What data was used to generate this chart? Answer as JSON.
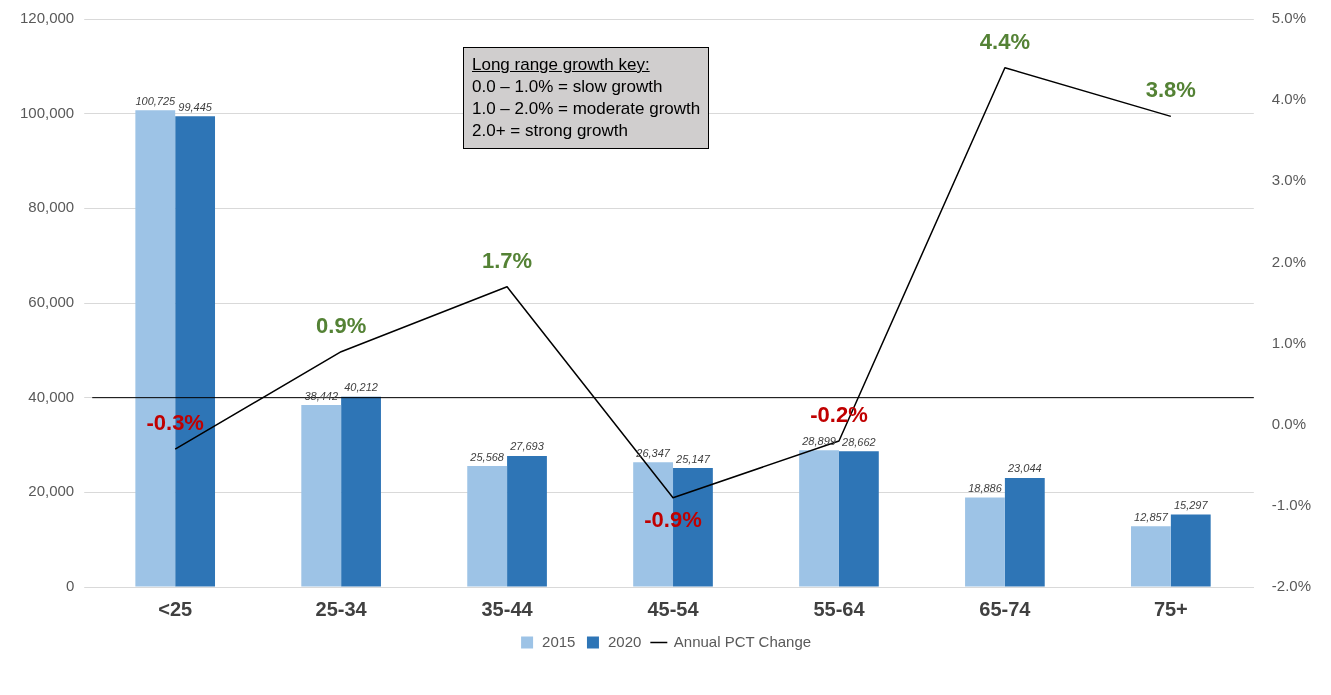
{
  "chart_data": {
    "type": "bar",
    "categories": [
      "<25",
      "25-34",
      "35-44",
      "45-54",
      "55-64",
      "65-74",
      "75+"
    ],
    "series": [
      {
        "name": "2015",
        "color": "#9dc3e6",
        "values": [
          100725,
          38442,
          25568,
          26347,
          28899,
          18886,
          12857
        ],
        "value_labels": [
          "100,725",
          "38,442",
          "25,568",
          "26,347",
          "28,899",
          "18,886",
          "12,857"
        ]
      },
      {
        "name": "2020",
        "color": "#2e75b6",
        "values": [
          99445,
          40212,
          27693,
          25147,
          28662,
          23044,
          15297
        ],
        "value_labels": [
          "99,445",
          "40,212",
          "27,693",
          "25,147",
          "28,662",
          "23,044",
          "15,297"
        ]
      },
      {
        "name": "Annual PCT Change",
        "type": "line",
        "axis": "y2",
        "color": "#000000",
        "values": [
          -0.3,
          0.9,
          1.7,
          -0.9,
          -0.2,
          4.4,
          3.8
        ],
        "value_labels": [
          "-0.3%",
          "0.9%",
          "1.7%",
          "-0.9%",
          "-0.2%",
          "4.4%",
          "3.8%"
        ]
      }
    ],
    "ylim": [
      0,
      120000
    ],
    "yticks": [
      0,
      {
        "value": 20000,
        "label": "20,000"
      },
      {
        "value": 40000,
        "label": "40,000"
      },
      {
        "value": 60000,
        "label": "60,000"
      },
      {
        "value": 80000,
        "label": "80,000"
      },
      {
        "value": 100000,
        "label": "100,000"
      },
      {
        "value": 120000,
        "label": "120,000"
      }
    ],
    "y2lim": [
      -2,
      5
    ],
    "y2ticks": [
      {
        "value": -2,
        "label": "-2.0%"
      },
      {
        "value": -1,
        "label": "-1.0%"
      },
      {
        "value": 0,
        "label": "0.0%"
      },
      {
        "value": 1,
        "label": "1.0%"
      },
      {
        "value": 2,
        "label": "2.0%"
      },
      {
        "value": 3,
        "label": "3.0%"
      },
      {
        "value": 4,
        "label": "4.0%"
      },
      {
        "value": 5,
        "label": "5.0%"
      }
    ],
    "ref_lines": [
      {
        "axis": "y",
        "value": 40000,
        "color": "#000000"
      }
    ],
    "annotations": [
      "Long range growth key:\n0.0 – 1.0% = slow growth\n1.0 – 2.0% = moderate growth\n2.0+ = strong growth"
    ],
    "grid": "y",
    "legend": "bottom",
    "marker": "none",
    "line_style": "solid"
  }
}
